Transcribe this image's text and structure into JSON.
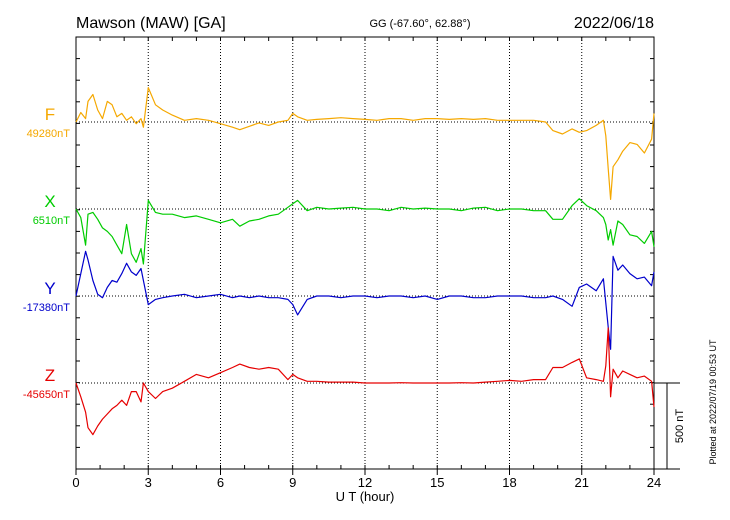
{
  "header": {
    "station": "Mawson (MAW)  [GA]",
    "coords": "GG (-67.60°,  62.88°)",
    "date": "2022/06/18"
  },
  "side_note": "Plotted at 2022/07/19 00:53 UT",
  "scale_label": "500 nT",
  "chart_data": {
    "type": "line",
    "xlabel": "U T (hour)",
    "xlim": [
      0,
      24
    ],
    "xticks": [
      0,
      3,
      6,
      9,
      12,
      15,
      18,
      21,
      24
    ],
    "scale_nT": 500,
    "series": [
      {
        "name": "F",
        "baseline_label": "49280nT",
        "baseline": 49280,
        "color": "#f5a800",
        "x": [
          0,
          0.2,
          0.4,
          0.5,
          0.7,
          0.9,
          1.1,
          1.3,
          1.5,
          1.7,
          1.9,
          2.1,
          2.3,
          2.5,
          2.7,
          2.8,
          3.0,
          3.3,
          3.6,
          4.0,
          4.5,
          5.0,
          5.5,
          6.0,
          6.5,
          6.8,
          7.2,
          7.6,
          8.0,
          8.4,
          8.8,
          9.0,
          9.2,
          9.6,
          10.0,
          10.5,
          11.0,
          11.5,
          12.0,
          12.5,
          13.0,
          13.5,
          14.0,
          14.5,
          15.0,
          15.5,
          16.0,
          16.5,
          17.0,
          17.5,
          18.0,
          18.5,
          19.0,
          19.5,
          19.8,
          20.2,
          20.6,
          20.9,
          21.2,
          21.6,
          21.9,
          22.0,
          22.1,
          22.2,
          22.3,
          22.5,
          22.7,
          23.0,
          23.3,
          23.6,
          23.9,
          24.0
        ],
        "y": [
          49280,
          49335,
          49300,
          49400,
          49440,
          49350,
          49300,
          49400,
          49380,
          49310,
          49330,
          49290,
          49310,
          49270,
          49300,
          49250,
          49480,
          49380,
          49350,
          49320,
          49290,
          49300,
          49290,
          49270,
          49250,
          49235,
          49255,
          49275,
          49260,
          49280,
          49290,
          49330,
          49310,
          49290,
          49295,
          49300,
          49305,
          49300,
          49295,
          49290,
          49300,
          49300,
          49290,
          49300,
          49300,
          49295,
          49300,
          49295,
          49300,
          49290,
          49290,
          49290,
          49290,
          49280,
          49230,
          49210,
          49240,
          49220,
          49230,
          49260,
          49290,
          49200,
          49010,
          48830,
          49020,
          49060,
          49110,
          49160,
          49150,
          49100,
          49180,
          49330
        ]
      },
      {
        "name": "X",
        "baseline_label": "6510nT",
        "baseline": 6510,
        "color": "#00cc00",
        "x": [
          0,
          0.2,
          0.4,
          0.5,
          0.7,
          0.9,
          1.1,
          1.3,
          1.5,
          1.7,
          1.9,
          2.1,
          2.3,
          2.5,
          2.7,
          2.8,
          3.0,
          3.3,
          3.6,
          4.0,
          4.5,
          5.0,
          5.5,
          6.0,
          6.5,
          6.8,
          7.2,
          7.6,
          8.0,
          8.4,
          8.8,
          9.0,
          9.2,
          9.6,
          10.0,
          10.5,
          11.0,
          11.5,
          12.0,
          12.5,
          13.0,
          13.5,
          14.0,
          14.5,
          15.0,
          15.5,
          16.0,
          16.5,
          17.0,
          17.5,
          18.0,
          18.5,
          19.0,
          19.5,
          19.8,
          20.2,
          20.6,
          20.9,
          21.2,
          21.6,
          21.9,
          22.0,
          22.1,
          22.2,
          22.3,
          22.5,
          22.7,
          23.0,
          23.3,
          23.6,
          23.9,
          24.0
        ],
        "y": [
          6510,
          6460,
          6300,
          6480,
          6490,
          6450,
          6400,
          6380,
          6350,
          6300,
          6250,
          6420,
          6250,
          6200,
          6280,
          6190,
          6560,
          6490,
          6480,
          6480,
          6460,
          6470,
          6450,
          6430,
          6450,
          6410,
          6440,
          6450,
          6470,
          6480,
          6520,
          6540,
          6560,
          6500,
          6520,
          6510,
          6515,
          6520,
          6510,
          6510,
          6500,
          6520,
          6510,
          6515,
          6510,
          6510,
          6500,
          6515,
          6520,
          6500,
          6510,
          6510,
          6500,
          6500,
          6450,
          6450,
          6530,
          6570,
          6530,
          6500,
          6460,
          6420,
          6330,
          6390,
          6300,
          6440,
          6420,
          6360,
          6350,
          6310,
          6380,
          6290
        ]
      },
      {
        "name": "Y",
        "baseline_label": "-17380nT",
        "baseline": -17380,
        "color": "#0000cc",
        "x": [
          0,
          0.2,
          0.4,
          0.5,
          0.7,
          0.9,
          1.1,
          1.3,
          1.5,
          1.7,
          1.9,
          2.1,
          2.3,
          2.5,
          2.7,
          2.8,
          3.0,
          3.3,
          3.6,
          4.0,
          4.5,
          5.0,
          5.5,
          6.0,
          6.5,
          6.8,
          7.2,
          7.6,
          8.0,
          8.4,
          8.8,
          9.0,
          9.2,
          9.6,
          10.0,
          10.5,
          11.0,
          11.5,
          12.0,
          12.5,
          13.0,
          13.5,
          14.0,
          14.5,
          15.0,
          15.5,
          16.0,
          16.5,
          17.0,
          17.5,
          18.0,
          18.5,
          19.0,
          19.5,
          19.8,
          20.2,
          20.6,
          20.9,
          21.2,
          21.6,
          21.9,
          22.0,
          22.1,
          22.2,
          22.3,
          22.5,
          22.7,
          23.0,
          23.3,
          23.6,
          23.9,
          24.0
        ],
        "y": [
          -17380,
          -17250,
          -17120,
          -17170,
          -17290,
          -17370,
          -17390,
          -17330,
          -17290,
          -17300,
          -17250,
          -17190,
          -17240,
          -17260,
          -17220,
          -17290,
          -17430,
          -17400,
          -17390,
          -17380,
          -17370,
          -17390,
          -17380,
          -17370,
          -17390,
          -17380,
          -17390,
          -17380,
          -17390,
          -17390,
          -17400,
          -17430,
          -17490,
          -17400,
          -17380,
          -17380,
          -17390,
          -17380,
          -17380,
          -17390,
          -17380,
          -17380,
          -17390,
          -17380,
          -17400,
          -17380,
          -17380,
          -17390,
          -17390,
          -17380,
          -17380,
          -17380,
          -17390,
          -17390,
          -17380,
          -17400,
          -17440,
          -17330,
          -17310,
          -17350,
          -17280,
          -17420,
          -17560,
          -17690,
          -17150,
          -17230,
          -17200,
          -17250,
          -17280,
          -17270,
          -17320,
          -17240
        ]
      },
      {
        "name": "Z",
        "baseline_label": "-45650nT",
        "baseline": -45650,
        "color": "#e60000",
        "x": [
          0,
          0.2,
          0.4,
          0.5,
          0.7,
          0.9,
          1.1,
          1.3,
          1.5,
          1.7,
          1.9,
          2.1,
          2.3,
          2.5,
          2.7,
          2.8,
          3.0,
          3.3,
          3.6,
          4.0,
          4.5,
          5.0,
          5.5,
          6.0,
          6.5,
          6.8,
          7.2,
          7.6,
          8.0,
          8.4,
          8.8,
          9.0,
          9.2,
          9.6,
          10.0,
          10.5,
          11.0,
          11.5,
          12.0,
          12.5,
          13.0,
          13.5,
          14.0,
          14.5,
          15.0,
          15.5,
          16.0,
          16.5,
          17.0,
          17.5,
          18.0,
          18.5,
          19.0,
          19.5,
          19.8,
          20.2,
          20.6,
          20.9,
          21.2,
          21.6,
          21.9,
          22.0,
          22.1,
          22.2,
          22.3,
          22.5,
          22.7,
          23.0,
          23.3,
          23.6,
          23.9,
          24.0
        ],
        "y": [
          -45650,
          -45730,
          -45820,
          -45910,
          -45950,
          -45900,
          -45860,
          -45830,
          -45800,
          -45780,
          -45750,
          -45780,
          -45700,
          -45700,
          -45760,
          -45650,
          -45700,
          -45740,
          -45700,
          -45680,
          -45640,
          -45600,
          -45620,
          -45590,
          -45560,
          -45540,
          -45560,
          -45570,
          -45560,
          -45570,
          -45630,
          -45600,
          -45620,
          -45640,
          -45640,
          -45645,
          -45645,
          -45645,
          -45650,
          -45650,
          -45650,
          -45648,
          -45650,
          -45650,
          -45650,
          -45650,
          -45648,
          -45650,
          -45645,
          -45640,
          -45635,
          -45640,
          -45630,
          -45630,
          -45560,
          -45560,
          -45530,
          -45510,
          -45620,
          -45630,
          -45640,
          -45550,
          -45330,
          -45730,
          -45570,
          -45620,
          -45580,
          -45600,
          -45620,
          -45610,
          -45640,
          -45790
        ]
      }
    ]
  }
}
